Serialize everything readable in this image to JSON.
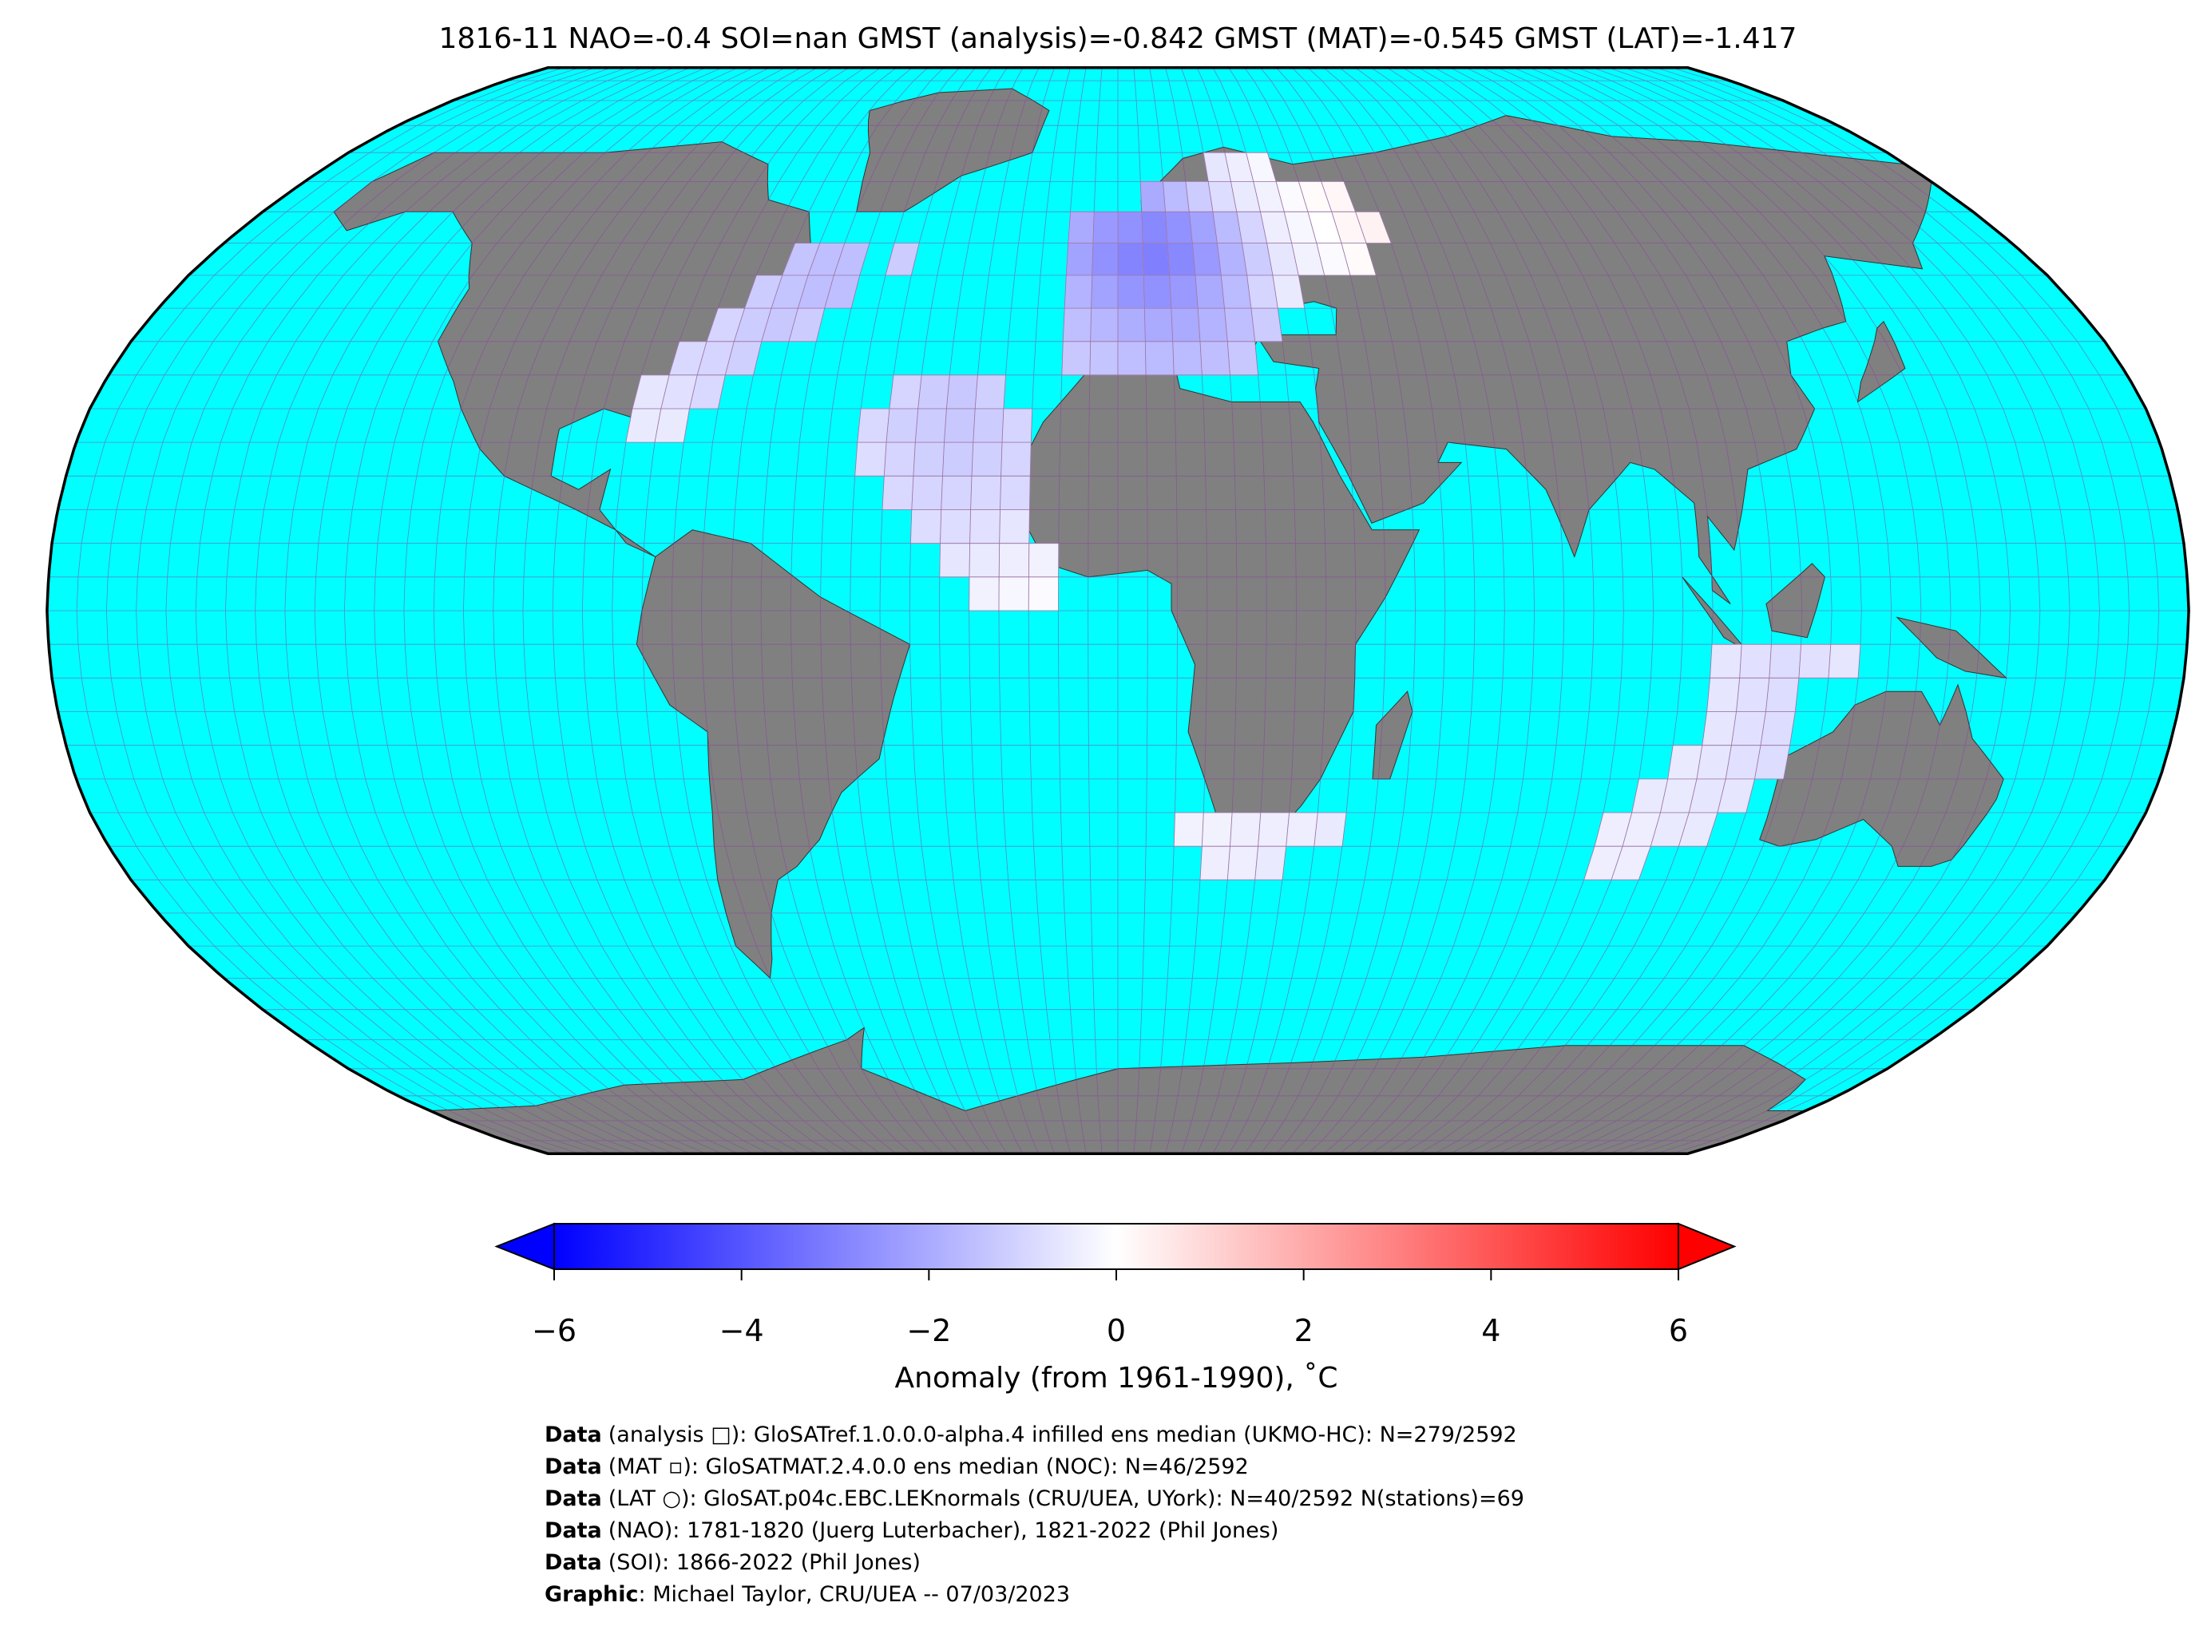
{
  "chart_data": {
    "type": "map",
    "title": "1816-11 NAO=-0.4 SOI=nan GMST (analysis)=-0.842 GMST (MAT)=-0.545 GMST (LAT)=-1.417",
    "cells": [
      {
        "lat": 65,
        "lon": [
          20,
          25,
          30
        ],
        "values": [
          -0.6,
          -0.4,
          -0.2
        ]
      },
      {
        "lat": 60,
        "lon": [
          5,
          10,
          15,
          20,
          25,
          30,
          35,
          40,
          45
        ],
        "values": [
          -2.0,
          -1.6,
          -1.2,
          -0.8,
          -0.5,
          -0.3,
          -0.1,
          0.1,
          0.2
        ]
      },
      {
        "lat": 55,
        "lon": [
          -10,
          -5,
          0,
          5,
          10,
          15,
          20,
          25,
          30,
          35,
          40,
          45,
          50
        ],
        "values": [
          -2.0,
          -2.4,
          -2.6,
          -2.8,
          -2.6,
          -2.2,
          -1.6,
          -1.0,
          -0.4,
          -0.2,
          0.0,
          0.2,
          0.3
        ]
      },
      {
        "lat": 50,
        "lon": [
          -65,
          -60,
          -55,
          -45,
          -10,
          -5,
          0,
          5,
          10,
          15,
          20,
          25,
          30,
          35,
          40,
          45
        ],
        "values": [
          -1.4,
          -1.5,
          -1.5,
          -1.2,
          -2.2,
          -2.6,
          -2.9,
          -3.0,
          -2.8,
          -2.4,
          -1.8,
          -1.2,
          -0.6,
          -0.3,
          -0.1,
          0.1
        ]
      },
      {
        "lat": 45,
        "lon": [
          -70,
          -65,
          -60,
          -55,
          -10,
          -5,
          0,
          5,
          10,
          15,
          20,
          25,
          30
        ],
        "values": [
          -1.2,
          -1.4,
          -1.5,
          -1.5,
          -1.8,
          -2.2,
          -2.5,
          -2.6,
          -2.4,
          -2.0,
          -1.6,
          -1.0,
          -0.5
        ]
      },
      {
        "lat": 40,
        "lon": [
          -75,
          -70,
          -65,
          -60,
          -10,
          -5,
          0,
          5,
          10,
          15,
          20,
          25
        ],
        "values": [
          -1.0,
          -1.2,
          -1.3,
          -1.2,
          -1.5,
          -1.7,
          -1.9,
          -2.0,
          -2.0,
          -1.8,
          -1.5,
          -1.2
        ]
      },
      {
        "lat": 35,
        "lon": [
          -80,
          -75,
          -70,
          -10,
          -5,
          0,
          5,
          10,
          15,
          20
        ],
        "values": [
          -0.9,
          -1.0,
          -1.1,
          -1.3,
          -1.4,
          -1.5,
          -1.6,
          -1.6,
          -1.5,
          -1.3
        ]
      },
      {
        "lat": 30,
        "lon": [
          -85,
          -80,
          -75,
          -40,
          -35,
          -30,
          -25
        ],
        "values": [
          -0.6,
          -0.7,
          -0.9,
          -1.0,
          -1.2,
          -1.3,
          -1.1
        ]
      },
      {
        "lat": 25,
        "lon": [
          -85,
          -80,
          -45,
          -40,
          -35,
          -30,
          -25,
          -20
        ],
        "values": [
          -0.5,
          -0.5,
          -0.9,
          -1.1,
          -1.2,
          -1.3,
          -1.2,
          -1.0
        ]
      },
      {
        "lat": 20,
        "lon": [
          -45,
          -40,
          -35,
          -30,
          -25,
          -20
        ],
        "values": [
          -0.8,
          -1.0,
          -1.1,
          -1.2,
          -1.1,
          -1.0
        ]
      },
      {
        "lat": 15,
        "lon": [
          -40,
          -35,
          -30,
          -25,
          -20
        ],
        "values": [
          -0.9,
          -1.0,
          -1.0,
          -0.9,
          -0.9
        ]
      },
      {
        "lat": 10,
        "lon": [
          -35,
          -30,
          -25,
          -20
        ],
        "values": [
          -0.8,
          -0.8,
          -0.7,
          -0.6
        ]
      },
      {
        "lat": 5,
        "lon": [
          -30,
          -25,
          -20,
          -15
        ],
        "values": [
          -0.6,
          -0.5,
          -0.4,
          -0.3
        ]
      },
      {
        "lat": 0,
        "lon": [
          -25,
          -20,
          -15
        ],
        "values": [
          -0.3,
          -0.2,
          -0.1
        ]
      },
      {
        "lat": -10,
        "lon": [
          100,
          105,
          110,
          115,
          120
        ],
        "values": [
          -0.6,
          -0.7,
          -0.8,
          -0.7,
          -0.6
        ]
      },
      {
        "lat": -15,
        "lon": [
          100,
          105,
          110
        ],
        "values": [
          -0.6,
          -0.7,
          -0.8
        ]
      },
      {
        "lat": -20,
        "lon": [
          100,
          105,
          110
        ],
        "values": [
          -0.6,
          -0.7,
          -0.8
        ]
      },
      {
        "lat": -25,
        "lon": [
          95,
          100,
          105,
          110
        ],
        "values": [
          -0.5,
          -0.6,
          -0.7,
          -0.8
        ]
      },
      {
        "lat": -30,
        "lon": [
          90,
          95,
          100,
          105
        ],
        "values": [
          -0.5,
          -0.5,
          -0.6,
          -0.6
        ]
      },
      {
        "lat": -35,
        "lon": [
          10,
          15,
          20,
          25,
          30,
          35,
          85,
          90,
          95,
          100
        ],
        "values": [
          -0.3,
          -0.3,
          -0.4,
          -0.4,
          -0.4,
          -0.5,
          -0.4,
          -0.4,
          -0.5,
          -0.5
        ]
      },
      {
        "lat": -40,
        "lon": [
          15,
          20,
          25,
          85,
          90
        ],
        "values": [
          -0.4,
          -0.4,
          -0.5,
          -0.4,
          -0.4
        ]
      }
    ],
    "colorbar": {
      "label": "Anomaly (from 1961-1990), ˚C",
      "lim": [
        -6,
        6
      ],
      "ticks": [
        {
          "value": -6,
          "label": "−6"
        },
        {
          "value": -4,
          "label": "−4"
        },
        {
          "value": -2,
          "label": "−2"
        },
        0,
        2,
        4,
        6
      ]
    }
  },
  "credits": [
    {
      "label": "Data",
      "text": "(analysis □): GloSATref.1.0.0.0-alpha.4 infilled ens median (UKMO-HC): N=279/2592"
    },
    {
      "label": "Data",
      "text": "(MAT ▫): GloSATMAT.2.4.0.0 ens median (NOC): N=46/2592"
    },
    {
      "label": "Data",
      "text": "(LAT ○): GloSAT.p04c.EBC.LEKnormals (CRU/UEA, UYork): N=40/2592 N(stations)=69"
    },
    {
      "label": "Data",
      "text": "(NAO): 1781-1820 (Juerg Luterbacher), 1821-2022 (Phil Jones)"
    },
    {
      "label": "Data",
      "text": "(SOI): 1866-2022 (Phil Jones)"
    },
    {
      "label": "Graphic",
      "text": ": Michael Taylor, CRU/UEA -- 07/03/2023"
    }
  ]
}
